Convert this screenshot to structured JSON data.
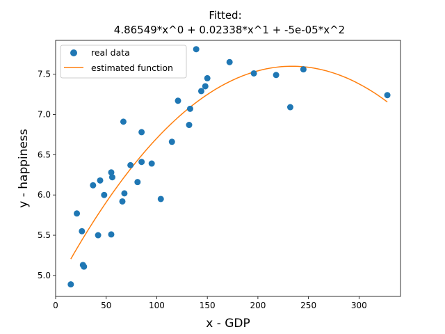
{
  "chart_data": {
    "type": "scatter",
    "title_line1": "Fitted:",
    "title_line2": "4.86549*x^0 + 0.02338*x^1 + -5e-05*x^2",
    "xlabel": "x - GDP",
    "ylabel": "y - happiness",
    "xlim": [
      0,
      341
    ],
    "ylim": [
      4.74,
      7.92
    ],
    "xticks": [
      0,
      50,
      100,
      150,
      200,
      250,
      300
    ],
    "yticks": [
      5.0,
      5.5,
      6.0,
      6.5,
      7.0,
      7.5
    ],
    "ytick_labels": [
      "5.0",
      "5.5",
      "6.0",
      "6.5",
      "7.0",
      "7.5"
    ],
    "grid": false,
    "legend_position": "top-left",
    "series": [
      {
        "name": "real data",
        "kind": "scatter",
        "color": "#1f77b4",
        "points": [
          [
            15,
            4.89
          ],
          [
            21,
            5.77
          ],
          [
            26,
            5.55
          ],
          [
            27,
            5.13
          ],
          [
            28,
            5.11
          ],
          [
            37,
            6.12
          ],
          [
            42,
            5.5
          ],
          [
            44,
            6.18
          ],
          [
            48,
            6.0
          ],
          [
            55,
            6.28
          ],
          [
            55,
            5.51
          ],
          [
            56,
            6.22
          ],
          [
            66,
            5.92
          ],
          [
            67,
            6.91
          ],
          [
            68,
            6.02
          ],
          [
            74,
            6.37
          ],
          [
            81,
            6.16
          ],
          [
            85,
            6.41
          ],
          [
            85,
            6.78
          ],
          [
            95,
            6.39
          ],
          [
            104,
            5.95
          ],
          [
            115,
            6.66
          ],
          [
            121,
            7.17
          ],
          [
            132,
            6.87
          ],
          [
            133,
            7.07
          ],
          [
            139,
            7.81
          ],
          [
            144,
            7.29
          ],
          [
            148,
            7.35
          ],
          [
            150,
            7.45
          ],
          [
            172,
            7.65
          ],
          [
            196,
            7.51
          ],
          [
            218,
            7.49
          ],
          [
            232,
            7.09
          ],
          [
            245,
            7.56
          ],
          [
            328,
            7.24
          ]
        ]
      },
      {
        "name": "estimated function",
        "kind": "line",
        "color": "#ff7f0e",
        "coefficients": [
          4.86549,
          0.02338,
          -5e-05
        ],
        "x_range": [
          15,
          328
        ]
      }
    ]
  }
}
